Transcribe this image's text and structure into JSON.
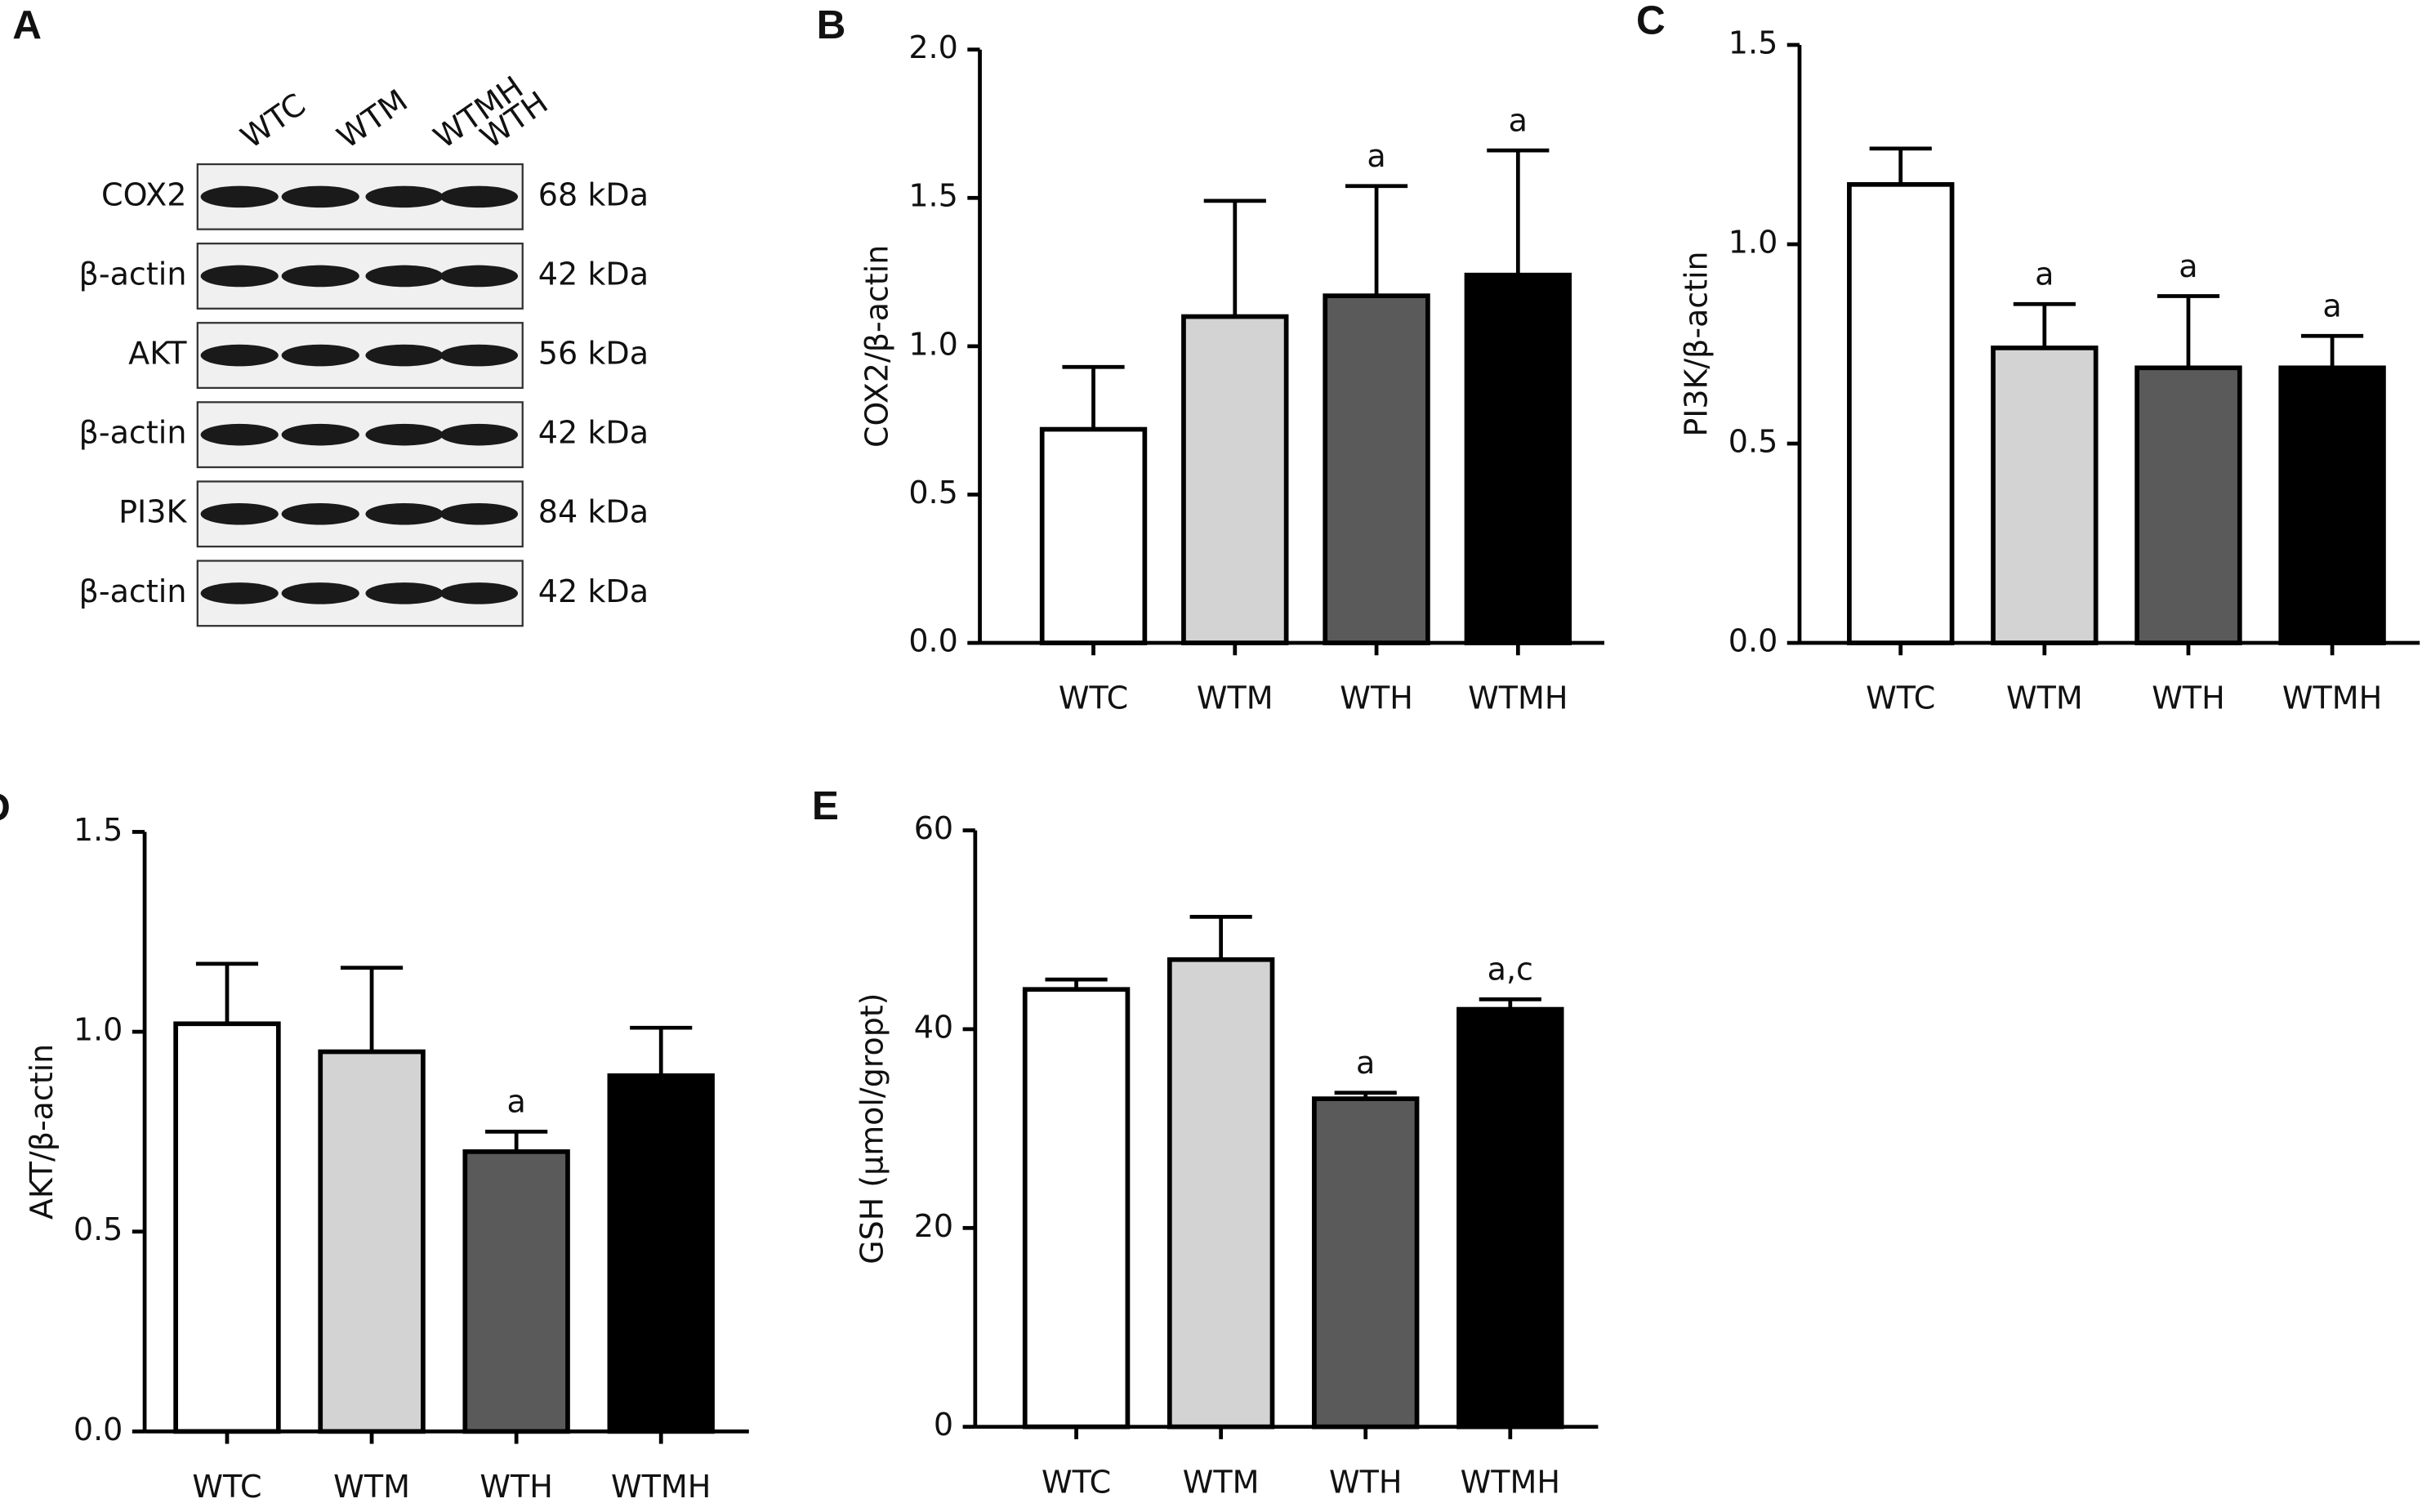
{
  "blot": {
    "panel": "A",
    "lanes": [
      "WTC",
      "WTM",
      "WTMH",
      "WTH"
    ],
    "rows": [
      {
        "protein": "COX2",
        "size": "68 kDa"
      },
      {
        "protein": "β-actin",
        "size": "42 kDa"
      },
      {
        "protein": "AKT",
        "size": "56 kDa"
      },
      {
        "protein": "β-actin",
        "size": "42 kDa"
      },
      {
        "protein": "PI3K",
        "size": "84 kDa"
      },
      {
        "protein": "β-actin",
        "size": "42 kDa"
      }
    ]
  },
  "chart_data": [
    {
      "type": "bar",
      "panel": "B",
      "y_label": "COX2/β-actin",
      "categories": [
        "WTC",
        "WTM",
        "WTH",
        "WTMH"
      ],
      "values": [
        0.72,
        1.1,
        1.17,
        1.24
      ],
      "errors": [
        0.21,
        0.39,
        0.37,
        0.42
      ],
      "annotations": [
        null,
        null,
        "a",
        "a"
      ],
      "colors": [
        "#ffffff",
        "#d3d3d3",
        "#5a5a5a",
        "#000000"
      ],
      "ylim": [
        0,
        2
      ],
      "yticks": [
        {
          "value": 0,
          "label": "0.0"
        },
        {
          "value": 0.5,
          "label": "0.5"
        },
        {
          "value": 1,
          "label": "1.0"
        },
        {
          "value": 1.5,
          "label": "1.5"
        },
        {
          "value": 2,
          "label": "2.0"
        }
      ]
    },
    {
      "type": "bar",
      "panel": "C",
      "y_label": "PI3K/β-actin",
      "categories": [
        "WTC",
        "WTM",
        "WTH",
        "WTMH"
      ],
      "values": [
        1.15,
        0.74,
        0.69,
        0.69
      ],
      "errors": [
        0.09,
        0.11,
        0.18,
        0.08
      ],
      "annotations": [
        null,
        "a",
        "a",
        "a"
      ],
      "colors": [
        "#ffffff",
        "#d3d3d3",
        "#5a5a5a",
        "#000000"
      ],
      "ylim": [
        0,
        1.5
      ],
      "yticks": [
        {
          "value": 0,
          "label": "0.0"
        },
        {
          "value": 0.5,
          "label": "0.5"
        },
        {
          "value": 1,
          "label": "1.0"
        },
        {
          "value": 1.5,
          "label": "1.5"
        }
      ]
    },
    {
      "type": "bar",
      "panel": "D",
      "y_label": "AKT/β-actin",
      "categories": [
        "WTC",
        "WTM",
        "WTH",
        "WTMH"
      ],
      "values": [
        1.02,
        0.95,
        0.7,
        0.89
      ],
      "errors": [
        0.15,
        0.21,
        0.05,
        0.12
      ],
      "annotations": [
        null,
        null,
        "a",
        null
      ],
      "colors": [
        "#ffffff",
        "#d3d3d3",
        "#5a5a5a",
        "#000000"
      ],
      "ylim": [
        0,
        1.5
      ],
      "yticks": [
        {
          "value": 0,
          "label": "0.0"
        },
        {
          "value": 0.5,
          "label": "0.5"
        },
        {
          "value": 1,
          "label": "1.0"
        },
        {
          "value": 1.5,
          "label": "1.5"
        }
      ]
    },
    {
      "type": "bar",
      "panel": "E",
      "y_label": "GSH (μmol/gropt)",
      "categories": [
        "WTC",
        "WTM",
        "WTH",
        "WTMH"
      ],
      "values": [
        44,
        47,
        33,
        42
      ],
      "errors": [
        1,
        4.3,
        0.6,
        1
      ],
      "annotations": [
        null,
        null,
        "a",
        "a,c"
      ],
      "colors": [
        "#ffffff",
        "#d3d3d3",
        "#5a5a5a",
        "#000000"
      ],
      "ylim": [
        0,
        60
      ],
      "yticks": [
        0,
        20,
        40,
        60
      ]
    }
  ]
}
